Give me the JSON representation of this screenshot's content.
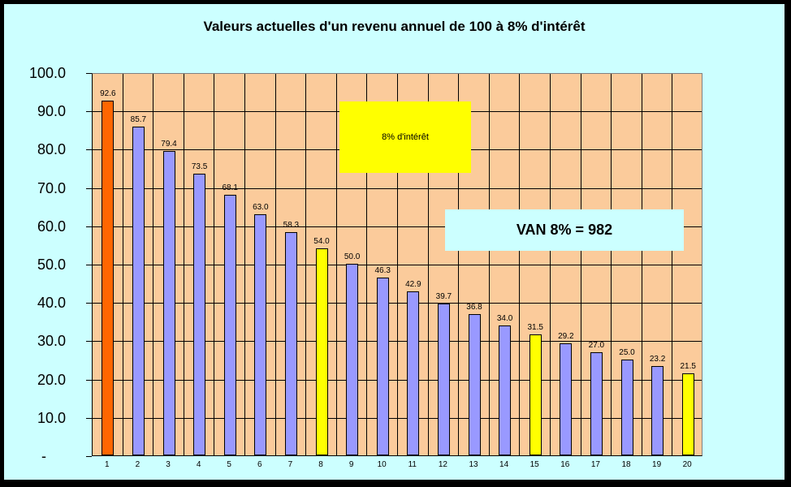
{
  "page": {
    "background": "#CCFFFF",
    "frame_border_color": "#000000"
  },
  "chart_data": {
    "type": "bar",
    "title": "Valeurs actuelles d'un revenu annuel de 100 à 8% d'intérêt",
    "xlabel": "",
    "ylabel": "",
    "ylim": [
      0,
      100
    ],
    "y_tick_step": 10,
    "y_tick_labels": [
      "100.0",
      "90.0",
      "80.0",
      "70.0",
      "60.0",
      "50.0",
      "40.0",
      "30.0",
      "20.0",
      "10.0",
      "-"
    ],
    "categories": [
      "1",
      "2",
      "3",
      "4",
      "5",
      "6",
      "7",
      "8",
      "9",
      "10",
      "11",
      "12",
      "13",
      "14",
      "15",
      "16",
      "17",
      "18",
      "19",
      "20"
    ],
    "values": [
      92.6,
      85.7,
      79.4,
      73.5,
      68.1,
      63.0,
      58.3,
      54.0,
      50.0,
      46.3,
      42.9,
      39.7,
      36.8,
      34.0,
      31.5,
      29.2,
      27.0,
      25.0,
      23.2,
      21.5
    ],
    "value_labels": [
      "92.6",
      "85.7",
      "79.4",
      "73.5",
      "68.1",
      "63.0",
      "58.3",
      "54.0",
      "50.0",
      "46.3",
      "42.9",
      "39.7",
      "36.8",
      "34.0",
      "31.5",
      "29.2",
      "27.0",
      "25.0",
      "23.2",
      "21.5"
    ],
    "bar_colors": [
      "#FF6600",
      "#9999FF",
      "#9999FF",
      "#9999FF",
      "#9999FF",
      "#9999FF",
      "#9999FF",
      "#FFFF00",
      "#9999FF",
      "#9999FF",
      "#9999FF",
      "#9999FF",
      "#9999FF",
      "#9999FF",
      "#FFFF00",
      "#9999FF",
      "#9999FF",
      "#9999FF",
      "#9999FF",
      "#FFFF00"
    ],
    "grid": "both",
    "gridline_color": "#000000",
    "plot_background": "#FBCB9B",
    "plot_border_color": "#808080",
    "legend": "none",
    "annotations": [
      {
        "text": "8% d'intérêt",
        "background": "#FFFF00"
      },
      {
        "text": "VAN 8% = 982",
        "background": "#CCFFFF"
      }
    ]
  }
}
